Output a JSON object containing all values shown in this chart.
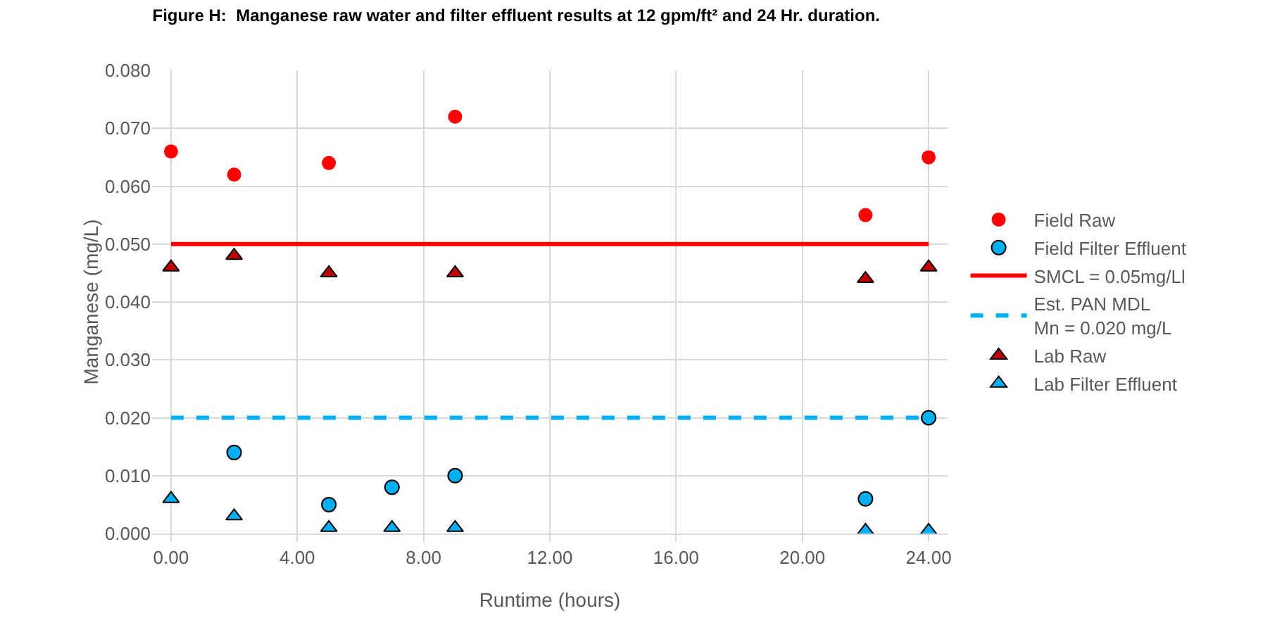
{
  "chart_data": {
    "type": "scatter",
    "title": "Figure H:  Manganese raw water and filter effluent results at 12 gpm/ft² and 24 Hr. duration.",
    "xlabel": "Runtime (hours)",
    "ylabel": "Manganese (mg/L)",
    "xlim": [
      -0.6,
      24.6
    ],
    "ylim": [
      0,
      0.08
    ],
    "xticks": [
      {
        "value": 0,
        "label": "0.00"
      },
      {
        "value": 4,
        "label": "4.00"
      },
      {
        "value": 8,
        "label": "8.00"
      },
      {
        "value": 12,
        "label": "12.00"
      },
      {
        "value": 16,
        "label": "16.00"
      },
      {
        "value": 20,
        "label": "20.00"
      },
      {
        "value": 24,
        "label": "24.00"
      }
    ],
    "yticks": [
      {
        "value": 0,
        "label": "0.000"
      },
      {
        "value": 0.01,
        "label": "0.010"
      },
      {
        "value": 0.02,
        "label": "0.020"
      },
      {
        "value": 0.03,
        "label": "0.030"
      },
      {
        "value": 0.04,
        "label": "0.040"
      },
      {
        "value": 0.05,
        "label": "0.050"
      },
      {
        "value": 0.06,
        "label": "0.060"
      },
      {
        "value": 0.07,
        "label": "0.070"
      },
      {
        "value": 0.08,
        "label": "0.080"
      }
    ],
    "grid": true,
    "legend": "right",
    "series": [
      {
        "name": "Field Raw",
        "color": "#ff0000",
        "marker": "circle",
        "x": [
          0,
          2,
          5,
          9,
          22,
          24
        ],
        "values": [
          0.066,
          0.062,
          0.064,
          0.072,
          0.055,
          0.065
        ]
      },
      {
        "name": "Field Filter Effluent",
        "color": "#00b0f0",
        "marker": "circle",
        "x": [
          2,
          5,
          7,
          9,
          22,
          24
        ],
        "values": [
          0.014,
          0.005,
          0.008,
          0.01,
          0.006,
          0.02
        ]
      },
      {
        "name": "SMCL = 0.05mg/Ll",
        "color": "#ff0000",
        "type": "line",
        "line_style": "solid",
        "x": [
          0,
          24
        ],
        "values": [
          0.05,
          0.05
        ]
      },
      {
        "name": "Est. PAN MDL\nMn = 0.020 mg/L",
        "color": "#00b0f0",
        "type": "line",
        "line_style": "dashed",
        "x": [
          0,
          24
        ],
        "values": [
          0.02,
          0.02
        ]
      },
      {
        "name": "Lab Raw",
        "color": "#c00000",
        "marker": "triangle",
        "x": [
          0,
          2,
          5,
          9,
          22,
          24
        ],
        "values": [
          0.046,
          0.048,
          0.045,
          0.045,
          0.044,
          0.046
        ]
      },
      {
        "name": "Lab Filter Effluent",
        "color": "#00b0f0",
        "marker": "triangle",
        "x": [
          0,
          2,
          5,
          7,
          9,
          22,
          24
        ],
        "values": [
          0.006,
          0.003,
          0.001,
          0.001,
          0.001,
          0.0005,
          0.0005
        ]
      }
    ]
  }
}
